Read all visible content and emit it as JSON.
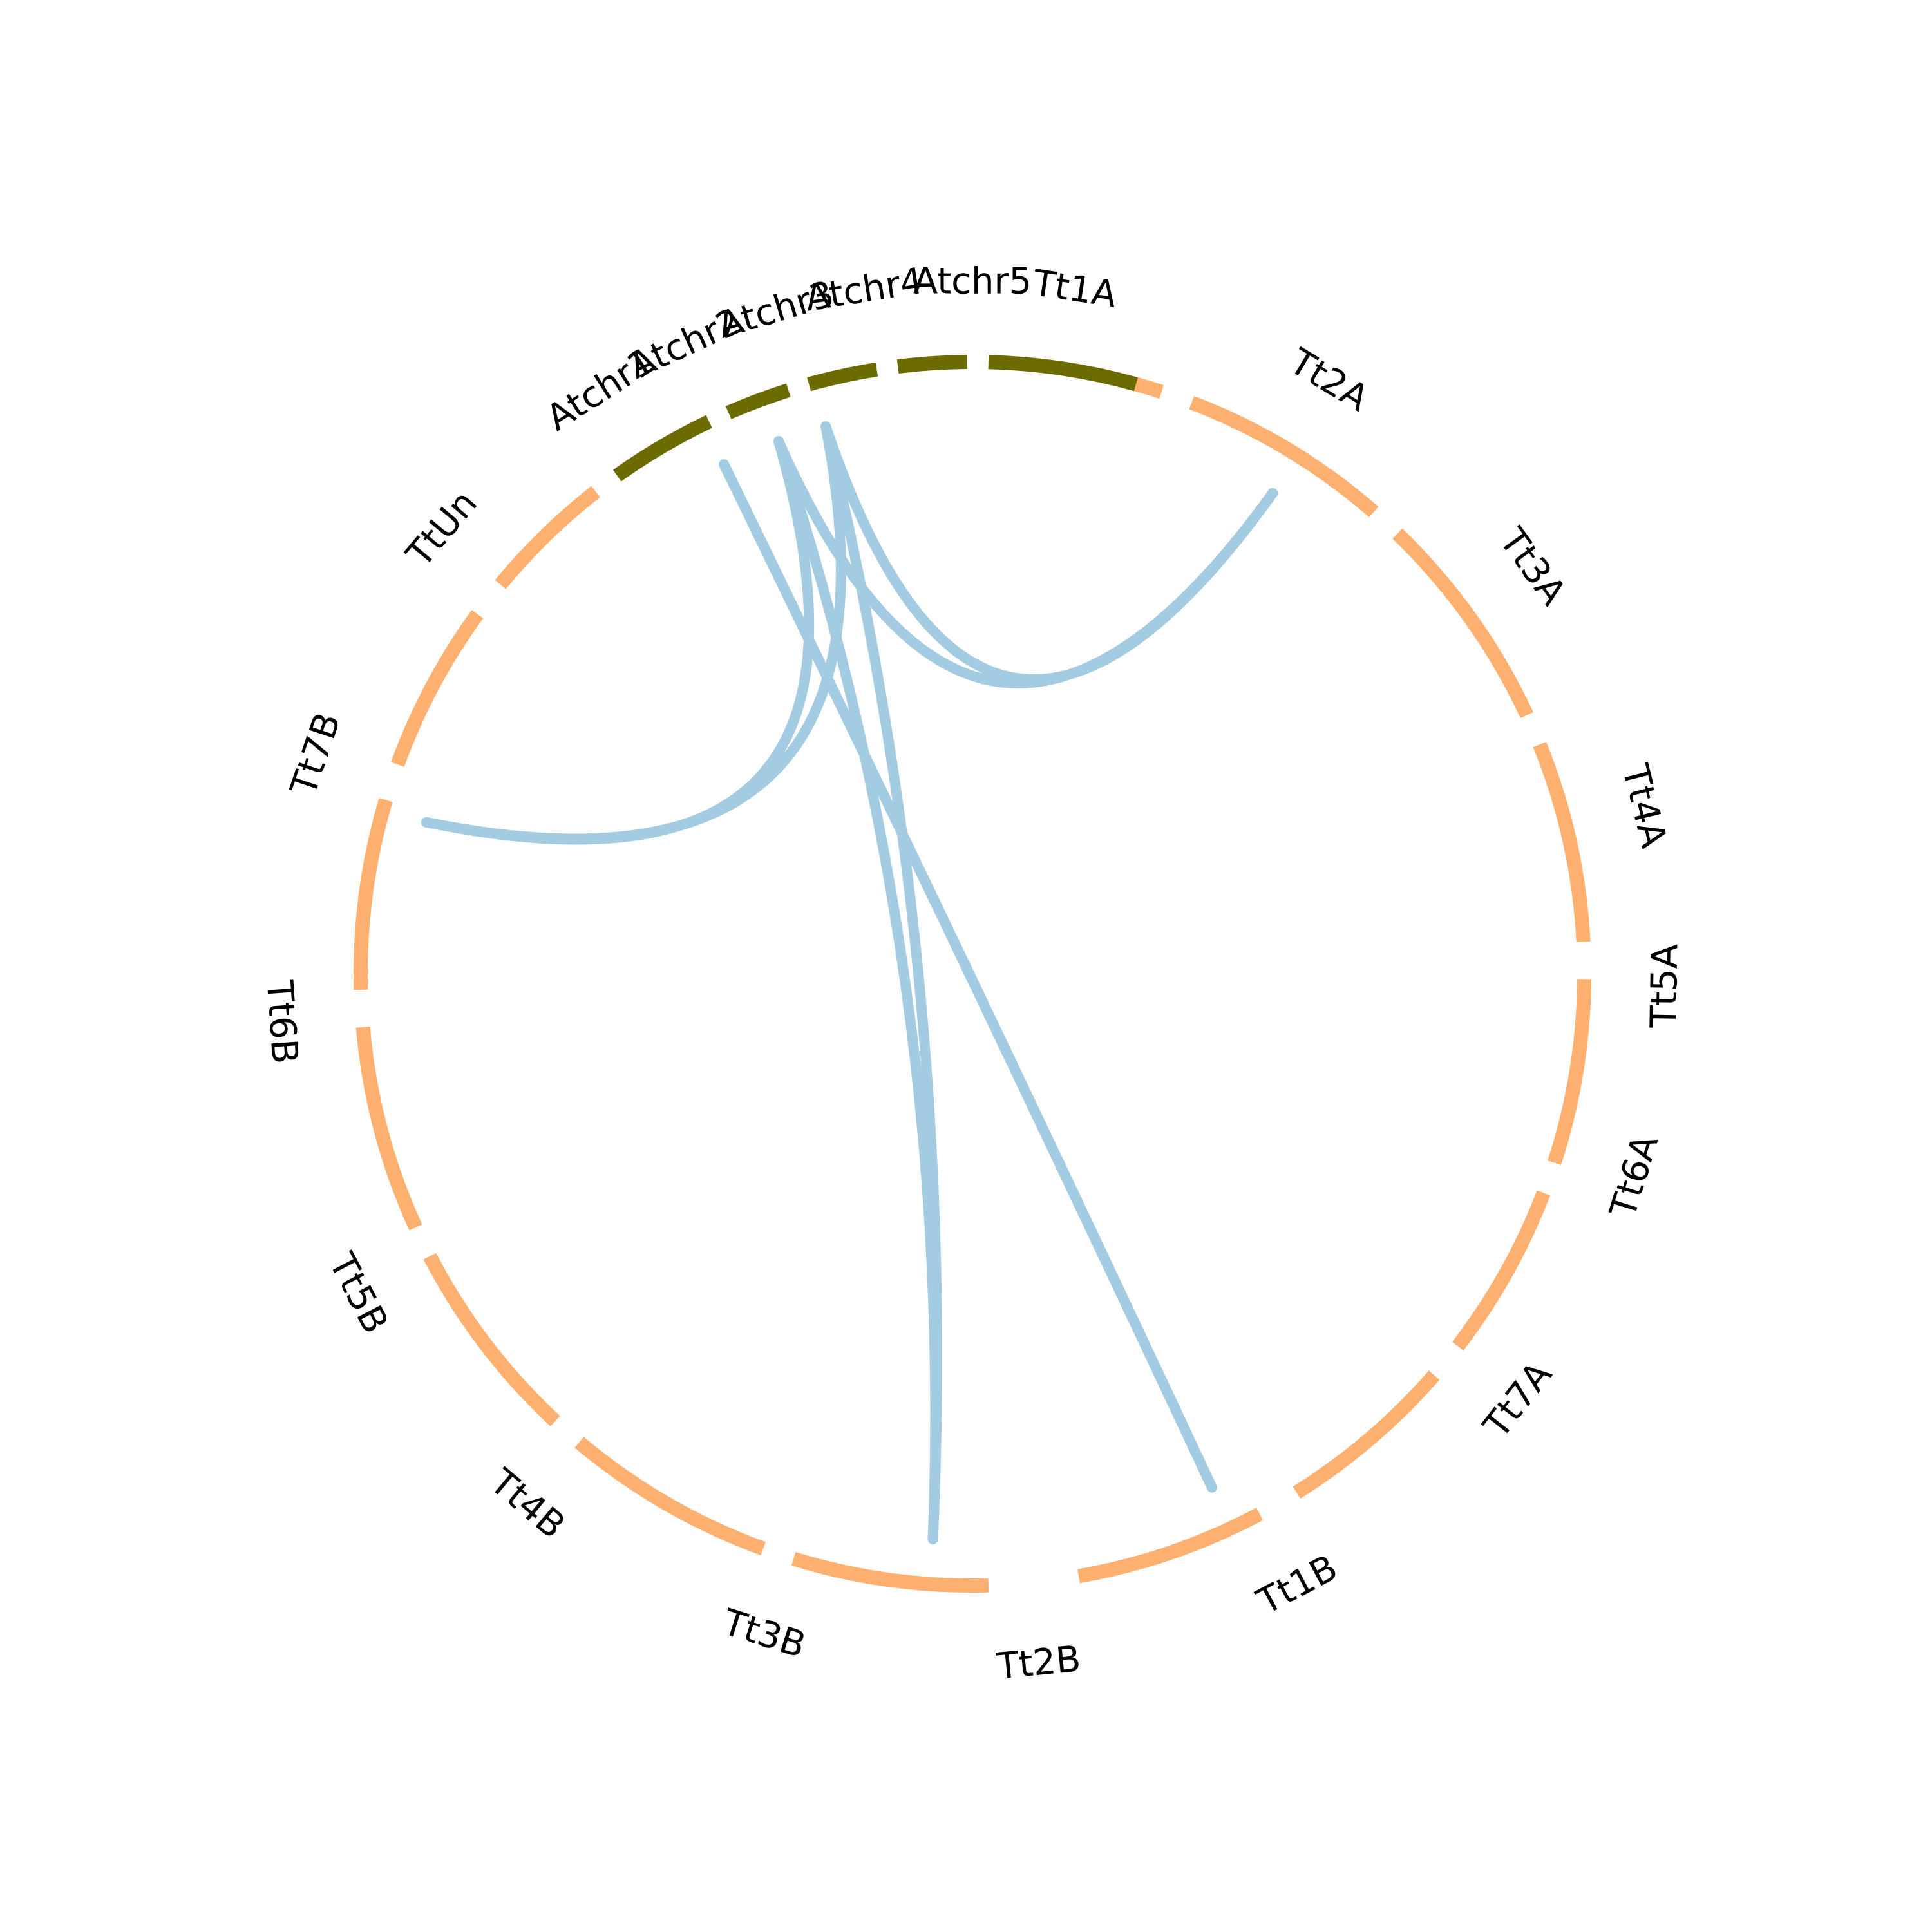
{
  "diagram": {
    "type": "chord",
    "segments": [
      {
        "label": "Tt1A",
        "group": "Tt"
      },
      {
        "label": "Tt2A",
        "group": "Tt"
      },
      {
        "label": "Tt3A",
        "group": "Tt"
      },
      {
        "label": "Tt4A",
        "group": "Tt"
      },
      {
        "label": "Tt5A",
        "group": "Tt"
      },
      {
        "label": "Tt6A",
        "group": "Tt"
      },
      {
        "label": "Tt7A",
        "group": "Tt"
      },
      {
        "label": "Tt1B",
        "group": "Tt"
      },
      {
        "label": "Tt2B",
        "group": "Tt"
      },
      {
        "label": "Tt3B",
        "group": "Tt"
      },
      {
        "label": "Tt4B",
        "group": "Tt"
      },
      {
        "label": "Tt5B",
        "group": "Tt"
      },
      {
        "label": "Tt6B",
        "group": "Tt"
      },
      {
        "label": "Tt7B",
        "group": "Tt"
      },
      {
        "label": "TtUn",
        "group": "Tt"
      },
      {
        "label": "Atchr1",
        "group": "At"
      },
      {
        "label": "Atchr2",
        "group": "At"
      },
      {
        "label": "Atchr3",
        "group": "At"
      },
      {
        "label": "Atchr4",
        "group": "At"
      },
      {
        "label": "Atchr5",
        "group": "At"
      }
    ],
    "links": [
      {
        "from": "Atchr4",
        "to": "Tt2A"
      },
      {
        "from": "Atchr3",
        "to": "Tt2A"
      },
      {
        "from": "Atchr3",
        "to": "Tt6B"
      },
      {
        "from": "Atchr4",
        "to": "Tt6B"
      },
      {
        "from": "Atchr4",
        "to": "Tt2B"
      },
      {
        "from": "Atchr3",
        "to": "Tt2B"
      },
      {
        "from": "Atchr2",
        "to": "Tt1B"
      }
    ],
    "colors": {
      "Tt": "#fdb06f",
      "At": "#6b6b00",
      "link": "#a3cbe1"
    }
  }
}
